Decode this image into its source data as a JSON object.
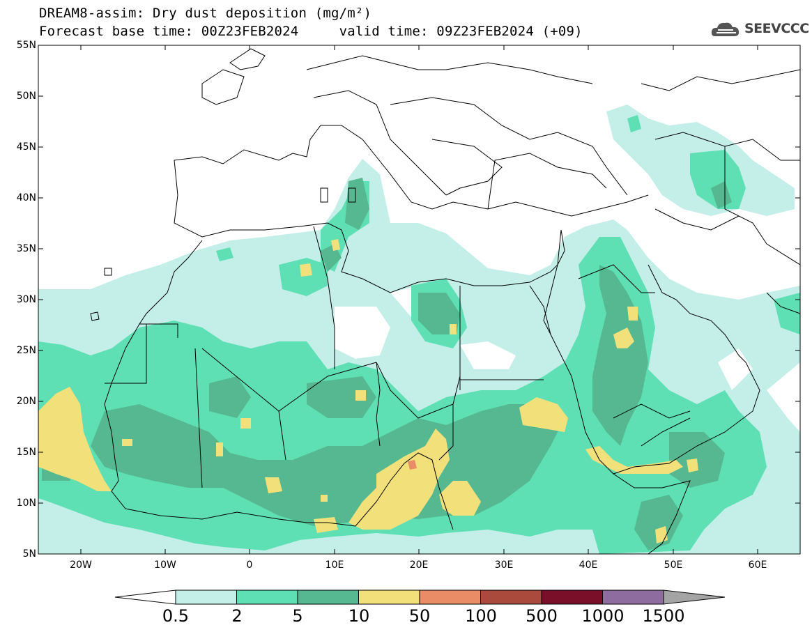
{
  "title_line1": "DREAM8-assim: Dry dust deposition (mg/m²)",
  "title_line2": "Forecast base time: 00Z23FEB2024     valid time: 09Z23FEB2024 (+09)",
  "logo_text": "SEEVCCC",
  "lat_labels": [
    "55N",
    "50N",
    "45N",
    "40N",
    "35N",
    "30N",
    "25N",
    "20N",
    "15N",
    "10N",
    "5N"
  ],
  "lon_labels": [
    "20W",
    "10W",
    "0",
    "10E",
    "20E",
    "30E",
    "40E",
    "50E",
    "60E"
  ],
  "colorbar": {
    "labels": [
      "0.5",
      "2",
      "5",
      "10",
      "50",
      "100",
      "500",
      "1000",
      "1500"
    ],
    "colors": [
      "#c3efe8",
      "#5fe0b4",
      "#55b890",
      "#f2e07a",
      "#ea8c65",
      "#a94a3c",
      "#7a0f2a",
      "#8e6ca0",
      "#a4a4a4"
    ],
    "below_color": "#ffffff"
  }
}
